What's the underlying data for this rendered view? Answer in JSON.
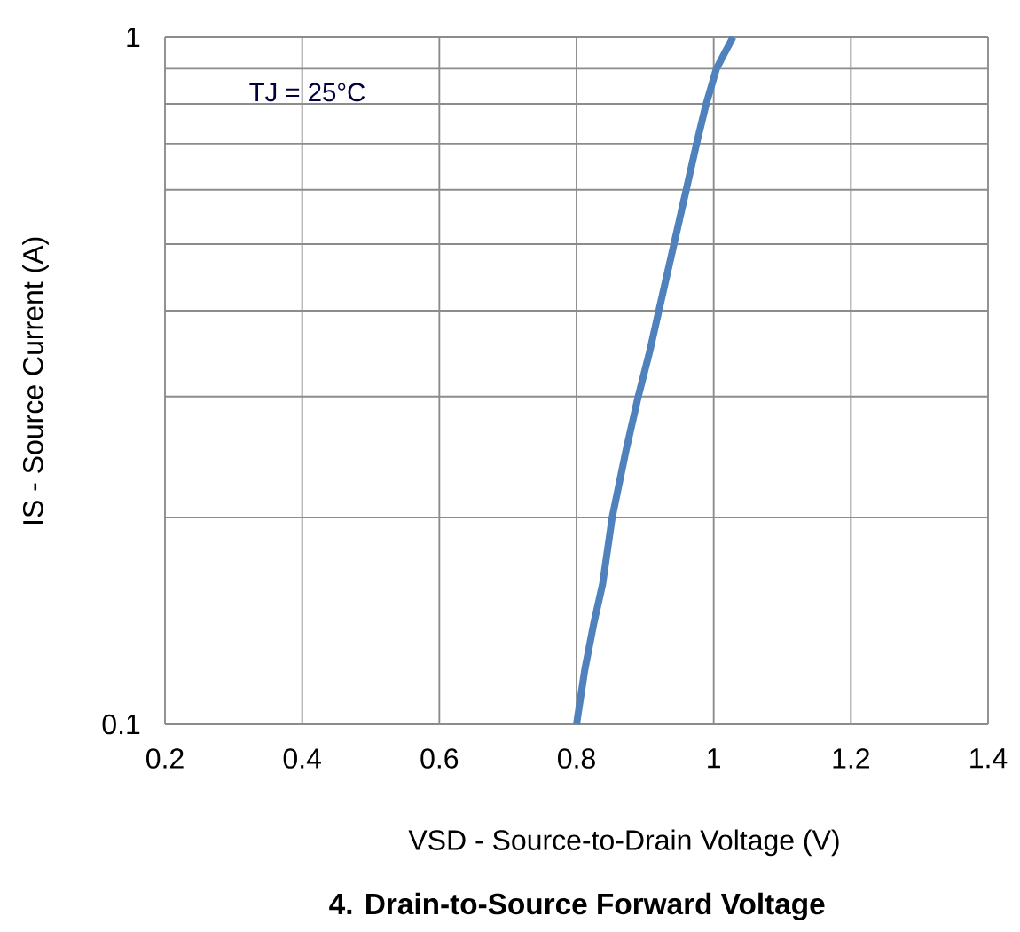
{
  "chart_data": {
    "type": "line",
    "title": "4. Drain-to-Source Forward Voltage",
    "xlabel": "VSD - Source-to-Drain Voltage (V)",
    "ylabel": "IS - Source Current (A)",
    "annotations": [
      "TJ = 25°C"
    ],
    "x": [
      0.8,
      0.812,
      0.825,
      0.838,
      0.852,
      0.872,
      0.89,
      0.907,
      0.92,
      0.942,
      0.96,
      0.975,
      0.989,
      1.004,
      1.028
    ],
    "series": [
      {
        "color": "#4f81bd",
        "values": [
          0.1,
          0.12,
          0.14,
          0.16,
          0.2,
          0.25,
          0.3,
          0.35,
          0.4,
          0.5,
          0.6,
          0.7,
          0.8,
          0.9,
          1
        ]
      }
    ],
    "xlim": [
      0.2,
      1.4
    ],
    "xticks": [
      0.2,
      0.4,
      0.6,
      0.8,
      1,
      1.2,
      1.4
    ],
    "ylim": [
      0.1,
      1
    ],
    "yticks": [
      0.1,
      1
    ],
    "log": "y",
    "grid": true,
    "marker": "none",
    "line_style": "solid"
  }
}
